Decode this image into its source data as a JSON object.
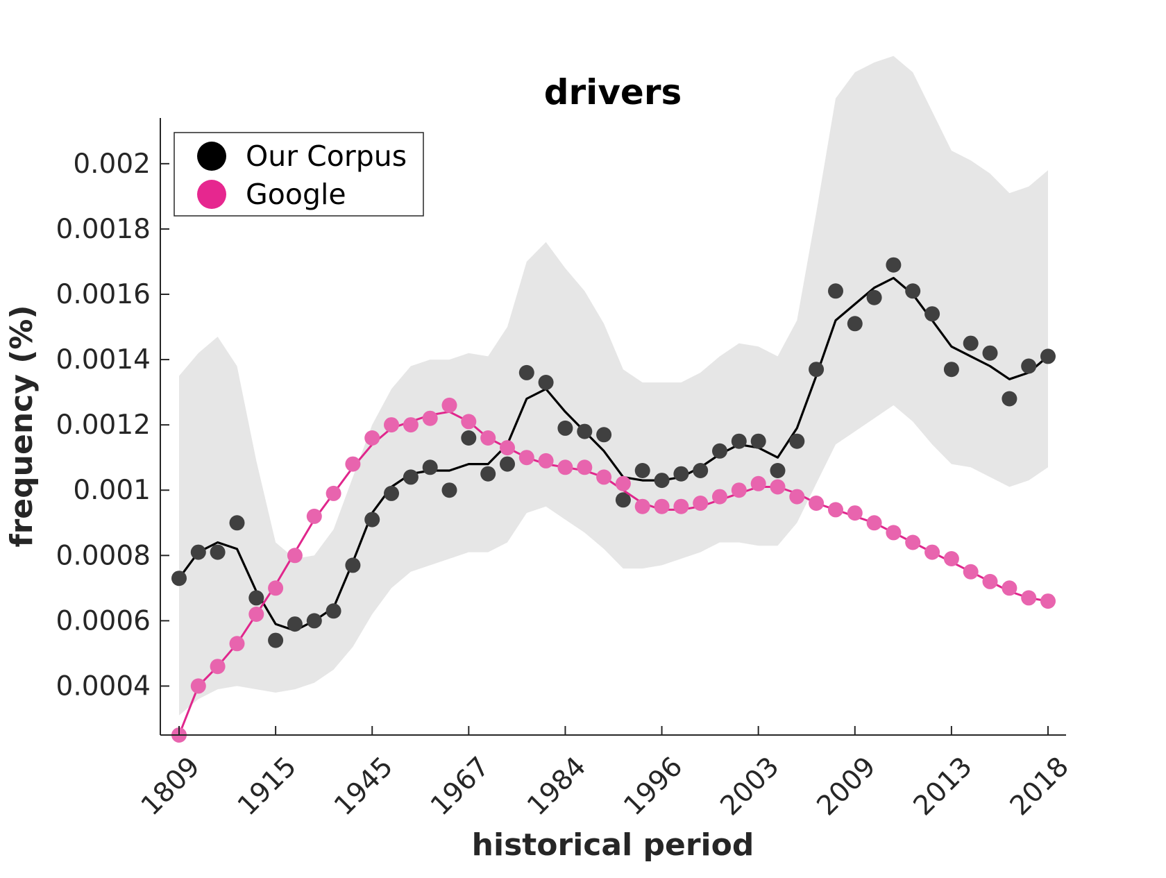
{
  "chart_data": {
    "type": "scatter",
    "title": "drivers",
    "xlabel": "historical period",
    "ylabel": "frequency (%)",
    "x_tick_labels": [
      "1809",
      "1915",
      "1945",
      "1967",
      "1984",
      "1996",
      "2003",
      "2009",
      "2013",
      "2018"
    ],
    "y_ticks": [
      0.0004,
      0.0006,
      0.0008,
      0.001,
      0.0012,
      0.0014,
      0.0016,
      0.0018,
      0.002
    ],
    "y_tick_labels": [
      "0.0004",
      "0.0006",
      "0.0008",
      "0.001",
      "0.0012",
      "0.0014",
      "0.0016",
      "0.0018",
      "0.002"
    ],
    "ylim": [
      0.00025,
      0.00214
    ],
    "x_index_range": [
      0,
      45
    ],
    "x_tick_index": [
      0,
      5,
      10,
      15,
      20,
      25,
      30,
      35,
      40,
      45
    ],
    "legend_position": "top-left",
    "grid": false,
    "series": [
      {
        "name": "Our Corpus",
        "color": "#000000",
        "marker_color": "#404040",
        "points": [
          0.00073,
          0.00081,
          0.00081,
          0.0009,
          0.00067,
          0.00054,
          0.00059,
          0.0006,
          0.00063,
          0.00077,
          0.00091,
          0.00099,
          0.00104,
          0.00107,
          0.001,
          0.00116,
          0.00105,
          0.00108,
          0.00136,
          0.00133,
          0.00119,
          0.00118,
          0.00117,
          0.00097,
          0.00106,
          0.00103,
          0.00105,
          0.00106,
          0.00112,
          0.00115,
          0.00115,
          0.00106,
          0.00115,
          0.00137,
          0.00161,
          0.00151,
          0.00159,
          0.00169,
          0.00161,
          0.00154,
          0.00137,
          0.00145,
          0.00142,
          0.00128,
          0.00138,
          0.00141
        ],
        "trend": [
          0.00073,
          0.00081,
          0.00084,
          0.00082,
          0.00069,
          0.00059,
          0.00057,
          0.0006,
          0.00064,
          0.00078,
          0.00093,
          0.00101,
          0.00105,
          0.00106,
          0.00106,
          0.00108,
          0.00108,
          0.00114,
          0.00128,
          0.00131,
          0.00124,
          0.00118,
          0.00112,
          0.00104,
          0.00103,
          0.00103,
          0.00104,
          0.00107,
          0.00111,
          0.00114,
          0.00113,
          0.0011,
          0.00119,
          0.00135,
          0.00152,
          0.00157,
          0.00162,
          0.00165,
          0.0016,
          0.00152,
          0.00144,
          0.00141,
          0.00138,
          0.00134,
          0.00136,
          0.00141
        ],
        "band_upper": [
          0.00135,
          0.00142,
          0.00147,
          0.00138,
          0.00109,
          0.00084,
          0.00079,
          0.0008,
          0.00088,
          0.00104,
          0.0012,
          0.00131,
          0.00138,
          0.0014,
          0.0014,
          0.00142,
          0.00141,
          0.0015,
          0.0017,
          0.00176,
          0.00168,
          0.00161,
          0.00151,
          0.00137,
          0.00133,
          0.00133,
          0.00133,
          0.00136,
          0.00141,
          0.00145,
          0.00144,
          0.00141,
          0.00152,
          0.00185,
          0.0022,
          0.00228,
          0.00231,
          0.00233,
          0.00228,
          0.00216,
          0.00204,
          0.00201,
          0.00197,
          0.00191,
          0.00193,
          0.00198
        ],
        "band_lower": [
          0.00031,
          0.00036,
          0.00039,
          0.0004,
          0.00039,
          0.00038,
          0.00039,
          0.00041,
          0.00045,
          0.00052,
          0.00062,
          0.0007,
          0.00075,
          0.00077,
          0.00079,
          0.00081,
          0.00081,
          0.00084,
          0.00093,
          0.00095,
          0.00091,
          0.00087,
          0.00082,
          0.00076,
          0.00076,
          0.00077,
          0.00079,
          0.00081,
          0.00084,
          0.00084,
          0.00083,
          0.00083,
          0.0009,
          0.00102,
          0.00114,
          0.00118,
          0.00122,
          0.00126,
          0.00121,
          0.00114,
          0.00108,
          0.00107,
          0.00104,
          0.00101,
          0.00103,
          0.00107
        ]
      },
      {
        "name": "Google",
        "color": "#e0268c",
        "marker_color": "#e864ae",
        "points": [
          0.00025,
          0.0004,
          0.00046,
          0.00053,
          0.00062,
          0.0007,
          0.0008,
          0.00092,
          0.00099,
          0.00108,
          0.00116,
          0.0012,
          0.0012,
          0.00122,
          0.00126,
          0.00121,
          0.00116,
          0.00113,
          0.0011,
          0.00109,
          0.00107,
          0.00107,
          0.00104,
          0.00102,
          0.00095,
          0.00095,
          0.00095,
          0.00096,
          0.00098,
          0.001,
          0.00102,
          0.00101,
          0.00098,
          0.00096,
          0.00094,
          0.00093,
          0.0009,
          0.00087,
          0.00084,
          0.00081,
          0.00079,
          0.00075,
          0.00072,
          0.0007,
          0.00067,
          0.00066
        ],
        "trend": [
          0.00025,
          0.0004,
          0.00046,
          0.00053,
          0.00062,
          0.00071,
          0.00081,
          0.00091,
          0.00099,
          0.00107,
          0.00114,
          0.00119,
          0.00121,
          0.00123,
          0.00124,
          0.00121,
          0.00116,
          0.00113,
          0.0011,
          0.00108,
          0.00107,
          0.00106,
          0.00104,
          0.001,
          0.00096,
          0.00094,
          0.00094,
          0.00095,
          0.00097,
          0.00099,
          0.00101,
          0.00101,
          0.00099,
          0.00096,
          0.00094,
          0.00092,
          0.0009,
          0.00087,
          0.00084,
          0.00081,
          0.00078,
          0.00075,
          0.00072,
          0.00069,
          0.00067,
          0.00066
        ]
      }
    ]
  }
}
